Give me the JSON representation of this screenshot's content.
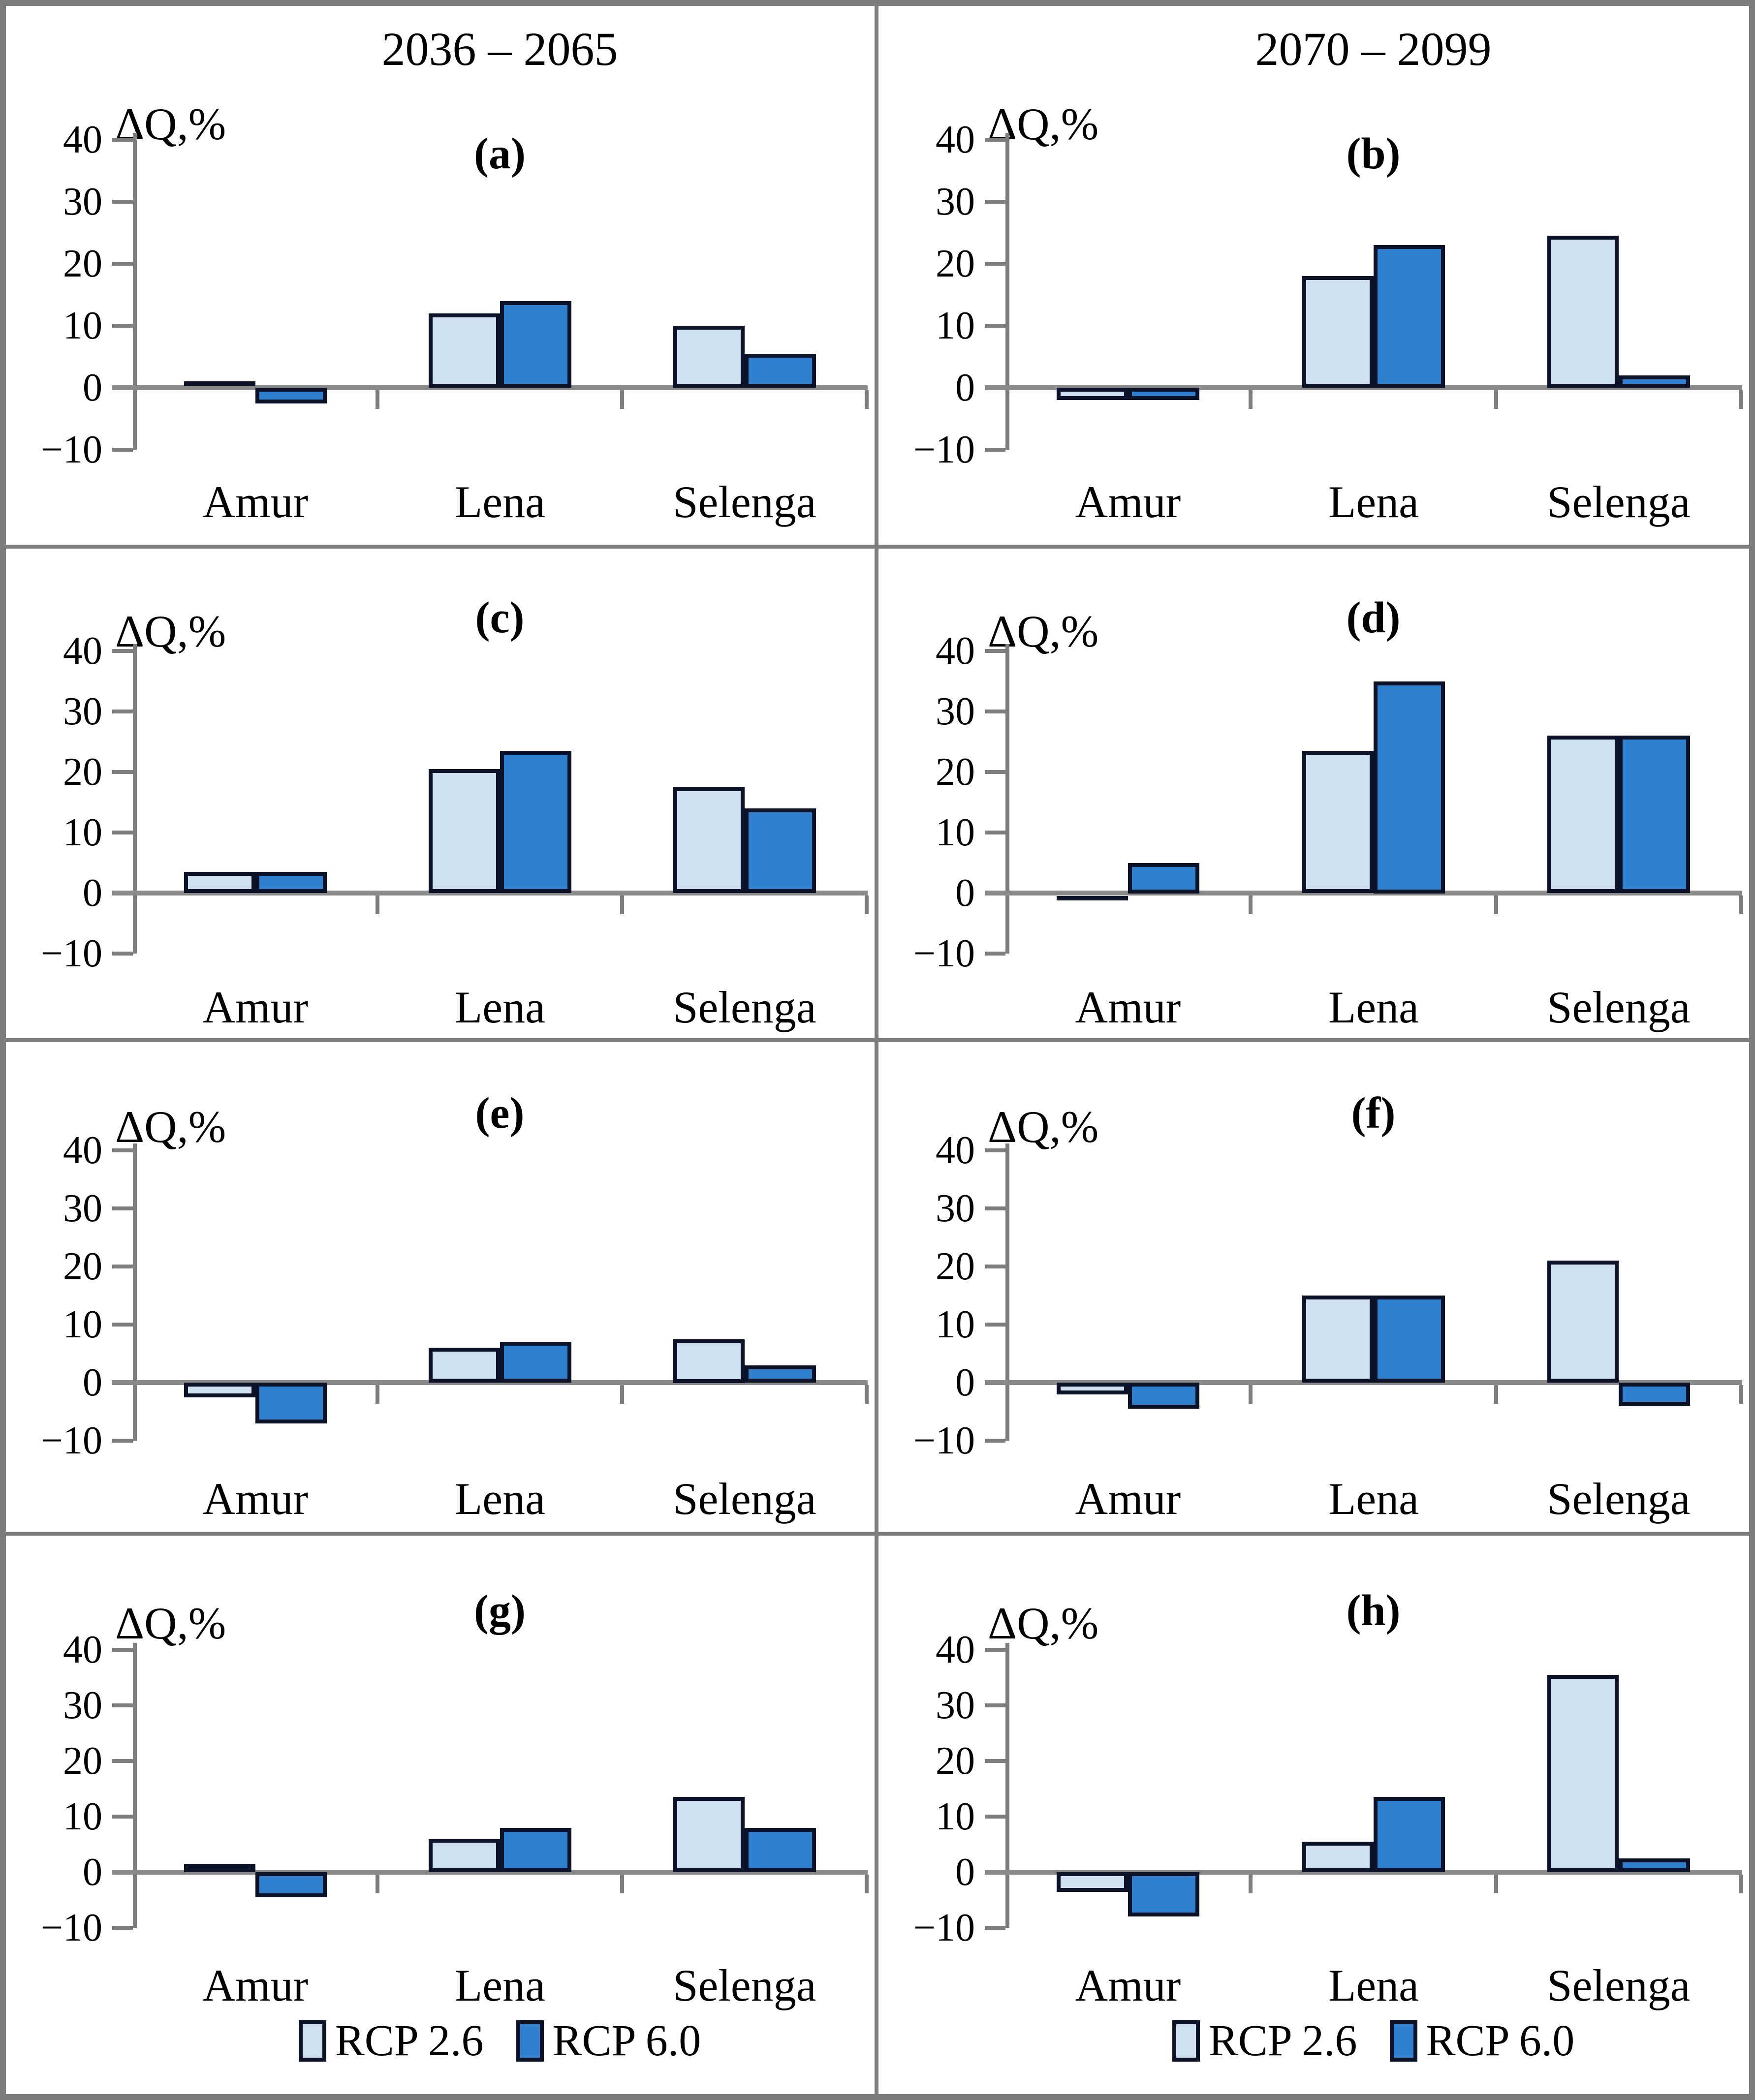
{
  "figure": {
    "column_headers": [
      "2036 – 2065",
      "2070 – 2099"
    ],
    "y_axis_label": "ΔQ,%",
    "y_tick_labels": [
      "40",
      "30",
      "20",
      "10",
      "0",
      "−10"
    ],
    "y_ticks": [
      40,
      30,
      20,
      10,
      0,
      -10
    ],
    "categories": [
      "Amur",
      "Lena",
      "Selenga"
    ],
    "legend": {
      "items": [
        {
          "label": "RCP 2.6",
          "color": "#cfe0f1"
        },
        {
          "label": "RCP 6.0",
          "color": "#2f80cf"
        }
      ],
      "position": "bottom"
    },
    "colors": {
      "rcp26_fill": "#cfe0f1",
      "rcp60_fill": "#2f80cf",
      "bar_border": "#0c1228",
      "axis_gray": "#7d7d7d",
      "text": "#000000",
      "background": "#ffffff"
    }
  },
  "chart_data": [
    {
      "type": "bar",
      "panel_label": "(a)",
      "period": "2036 – 2065",
      "categories": [
        "Amur",
        "Lena",
        "Selenga"
      ],
      "series": [
        {
          "name": "RCP 2.6",
          "values": [
            0.3,
            12,
            10
          ]
        },
        {
          "name": "RCP 6.0",
          "values": [
            -2.5,
            14,
            5.5
          ]
        }
      ],
      "ylabel": "ΔQ,%",
      "ylim": [
        -10,
        40
      ],
      "grid": false,
      "legend_position": "none"
    },
    {
      "type": "bar",
      "panel_label": "(b)",
      "period": "2070 – 2099",
      "categories": [
        "Amur",
        "Lena",
        "Selenga"
      ],
      "series": [
        {
          "name": "RCP 2.6",
          "values": [
            -2,
            18,
            24.5
          ]
        },
        {
          "name": "RCP 6.0",
          "values": [
            -2,
            23,
            2
          ]
        }
      ],
      "ylabel": "ΔQ,%",
      "ylim": [
        -10,
        40
      ],
      "grid": false,
      "legend_position": "none"
    },
    {
      "type": "bar",
      "panel_label": "(c)",
      "period": "2036 – 2065",
      "categories": [
        "Amur",
        "Lena",
        "Selenga"
      ],
      "series": [
        {
          "name": "RCP 2.6",
          "values": [
            3.5,
            20.5,
            17.5
          ]
        },
        {
          "name": "RCP 6.0",
          "values": [
            3.5,
            23.5,
            14
          ]
        }
      ],
      "ylabel": "ΔQ,%",
      "ylim": [
        -10,
        40
      ],
      "grid": false,
      "legend_position": "none"
    },
    {
      "type": "bar",
      "panel_label": "(d)",
      "period": "2070 – 2099",
      "categories": [
        "Amur",
        "Lena",
        "Selenga"
      ],
      "series": [
        {
          "name": "RCP 2.6",
          "values": [
            -0.5,
            23.5,
            26
          ]
        },
        {
          "name": "RCP 6.0",
          "values": [
            5,
            35,
            26
          ]
        }
      ],
      "ylabel": "ΔQ,%",
      "ylim": [
        -10,
        40
      ],
      "grid": false,
      "legend_position": "none"
    },
    {
      "type": "bar",
      "panel_label": "(e)",
      "period": "2036 – 2065",
      "categories": [
        "Amur",
        "Lena",
        "Selenga"
      ],
      "series": [
        {
          "name": "RCP 2.6",
          "values": [
            -2.5,
            6,
            7.5
          ]
        },
        {
          "name": "RCP 6.0",
          "values": [
            -7,
            7,
            3
          ]
        }
      ],
      "ylabel": "ΔQ,%",
      "ylim": [
        -10,
        40
      ],
      "grid": false,
      "legend_position": "none"
    },
    {
      "type": "bar",
      "panel_label": "(f)",
      "period": "2070 – 2099",
      "categories": [
        "Amur",
        "Lena",
        "Selenga"
      ],
      "series": [
        {
          "name": "RCP 2.6",
          "values": [
            -2,
            15,
            21
          ]
        },
        {
          "name": "RCP 6.0",
          "values": [
            -4.5,
            15,
            -4
          ]
        }
      ],
      "ylabel": "ΔQ,%",
      "ylim": [
        -10,
        40
      ],
      "grid": false,
      "legend_position": "none"
    },
    {
      "type": "bar",
      "panel_label": "(g)",
      "period": "2036 – 2065",
      "categories": [
        "Amur",
        "Lena",
        "Selenga"
      ],
      "series": [
        {
          "name": "RCP 2.6",
          "values": [
            1.5,
            6,
            13.5
          ]
        },
        {
          "name": "RCP 6.0",
          "values": [
            -4.5,
            8,
            8
          ]
        }
      ],
      "ylabel": "ΔQ,%",
      "ylim": [
        -10,
        40
      ],
      "grid": false,
      "legend_position": "bottom"
    },
    {
      "type": "bar",
      "panel_label": "(h)",
      "period": "2070 – 2099",
      "categories": [
        "Amur",
        "Lena",
        "Selenga"
      ],
      "series": [
        {
          "name": "RCP 2.6",
          "values": [
            -3.5,
            5.5,
            35.5
          ]
        },
        {
          "name": "RCP 6.0",
          "values": [
            -8,
            13.5,
            2.5
          ]
        }
      ],
      "ylabel": "ΔQ,%",
      "ylim": [
        -10,
        40
      ],
      "grid": false,
      "legend_position": "bottom"
    }
  ]
}
